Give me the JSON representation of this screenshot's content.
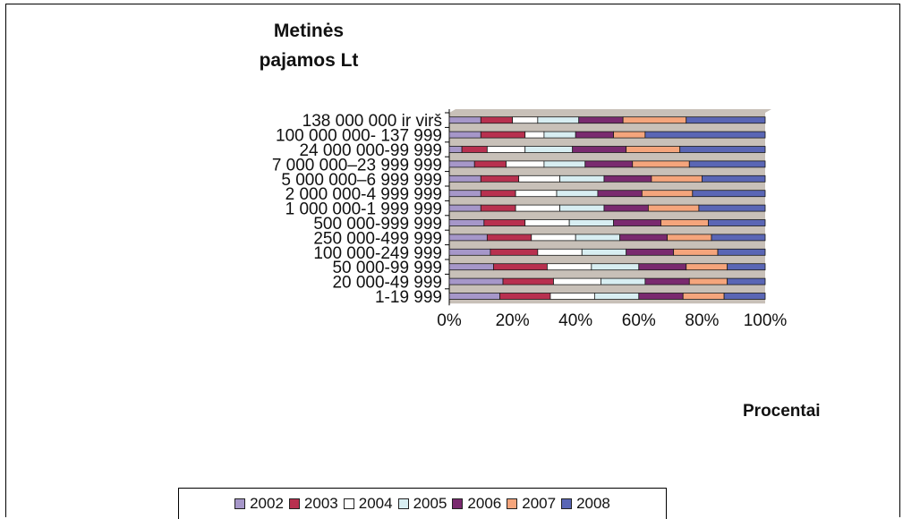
{
  "chart_data": {
    "type": "bar",
    "orientation": "horizontal",
    "stacked": "percent",
    "title": "",
    "ylabel": "Metinės pajamos Lt",
    "xlabel": "Procentai",
    "x_ticks": [
      "0%",
      "20%",
      "40%",
      "60%",
      "80%",
      "100%"
    ],
    "xlim": [
      0,
      100
    ],
    "categories": [
      "138 000 000 ir virš",
      "100 000 000- 137 999",
      "24 000 000-99 999",
      "7 000 000–23 999 999",
      "5 000 000–6 999 999",
      "2 000 000-4 999 999",
      "1 000 000-1 999 999",
      "500 000-999 999",
      "250 000-499 999",
      "100 000-249 999",
      "50 000-99 999",
      "20 000-49 999",
      "1-19 999"
    ],
    "series": [
      {
        "name": "2002",
        "color": "#a697c9",
        "values": [
          10,
          10,
          4,
          8,
          10,
          10,
          10,
          11,
          12,
          13,
          14,
          17,
          16
        ]
      },
      {
        "name": "2003",
        "color": "#b8304f",
        "values": [
          10,
          14,
          8,
          10,
          12,
          11,
          11,
          13,
          14,
          15,
          17,
          16,
          16
        ]
      },
      {
        "name": "2004",
        "color": "#ffffff",
        "values": [
          8,
          6,
          12,
          12,
          13,
          13,
          14,
          14,
          14,
          14,
          14,
          15,
          14
        ]
      },
      {
        "name": "2005",
        "color": "#d8eef2",
        "values": [
          13,
          10,
          15,
          13,
          14,
          13,
          14,
          14,
          14,
          14,
          15,
          14,
          14
        ]
      },
      {
        "name": "2006",
        "color": "#7a2a6f",
        "values": [
          14,
          12,
          17,
          15,
          15,
          14,
          14,
          15,
          15,
          15,
          15,
          14,
          14
        ]
      },
      {
        "name": "2007",
        "color": "#f5a57c",
        "values": [
          20,
          10,
          17,
          18,
          16,
          16,
          16,
          15,
          14,
          14,
          13,
          12,
          13
        ]
      },
      {
        "name": "2008",
        "color": "#5a66b5",
        "values": [
          25,
          38,
          27,
          24,
          20,
          23,
          21,
          18,
          17,
          15,
          12,
          12,
          13
        ]
      }
    ],
    "legend_position": "bottom",
    "grid": false
  }
}
